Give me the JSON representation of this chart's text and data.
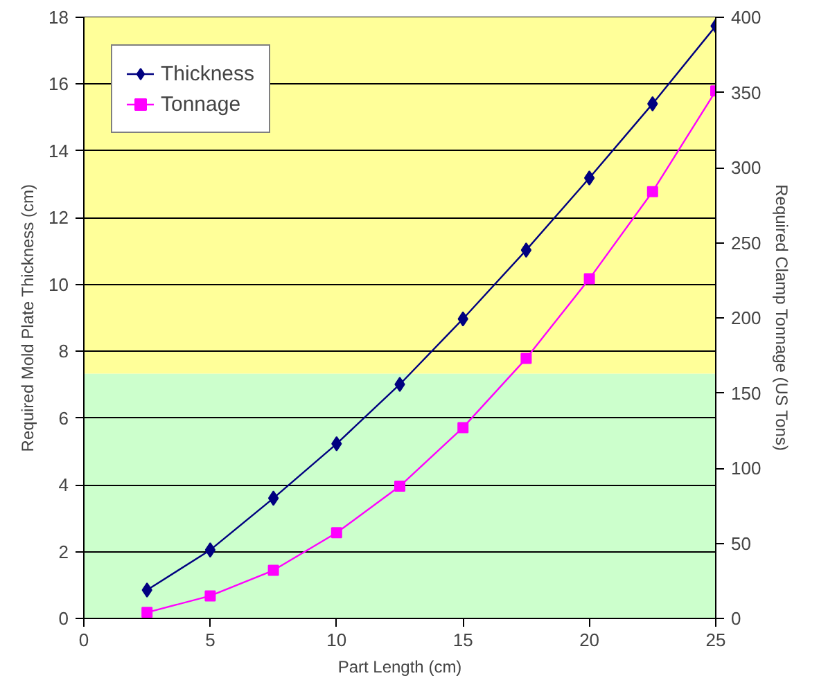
{
  "chart_data": {
    "type": "line",
    "xlabel": "Part Length (cm)",
    "ylabel": "Required Mold Plate Thickness (cm)",
    "y2label": "Required Clamp Tonnage (US Tons)",
    "x": [
      2.5,
      5,
      7.5,
      10,
      12.5,
      15,
      17.5,
      20,
      22.5,
      25
    ],
    "series": [
      {
        "name": "Thickness",
        "color": "#000080",
        "marker": "diamond",
        "values": [
          0.85,
          2.05,
          3.6,
          5.23,
          7.01,
          8.97,
          11.03,
          13.19,
          15.41,
          17.74
        ]
      },
      {
        "name": "Tonnage",
        "color": "#ff00ff",
        "marker": "square",
        "axis": "y2",
        "values": [
          4,
          15,
          32,
          57,
          88,
          127,
          173,
          226,
          284,
          351
        ]
      }
    ],
    "xlim": [
      0,
      25
    ],
    "xticks": [
      0,
      5,
      10,
      15,
      20,
      25
    ],
    "ylim": [
      0,
      18
    ],
    "yticks": [
      0,
      2,
      4,
      6,
      8,
      10,
      12,
      14,
      16,
      18
    ],
    "y2lim": [
      0,
      400
    ],
    "y2ticks": [
      0,
      50,
      100,
      150,
      200,
      250,
      300,
      350,
      400
    ],
    "bands": [
      {
        "axis": "y",
        "from": 0,
        "to": 7.33,
        "color": "#ccffcc"
      },
      {
        "axis": "y",
        "from": 7.33,
        "to": 18,
        "color": "#ffff99"
      }
    ],
    "grid": "y",
    "legend": "top left",
    "line_style": "solid"
  }
}
